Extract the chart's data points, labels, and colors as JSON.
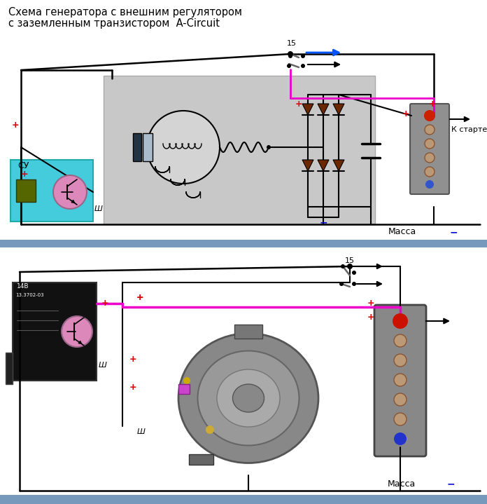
{
  "title_line1": "Схема генератора с внешним регулятором",
  "title_line2": "с заземленным транзистором  A-Circuit",
  "bg_color": "#ffffff",
  "bottom_bar_color": "#7799bb",
  "massa_text": "Масса",
  "k_starteru_text": "К стартеру",
  "label_15": "15",
  "label_sh": "Ш",
  "label_cy": "СУ",
  "plus_color": "#ff0000",
  "minus_color": "#0000cc",
  "wire_black": "#000000",
  "wire_pink": "#ee00cc",
  "wire_blue": "#0055ff",
  "diode_color": "#6b2800",
  "cyan_box_color": "#44ccdd",
  "pink_circle_color": "#dd88bb",
  "relay_box_color": "#1a1a1a",
  "panel_bg": "#c8c8c8",
  "batt_color": "#888899",
  "fig_width": 6.96,
  "fig_height": 7.19
}
